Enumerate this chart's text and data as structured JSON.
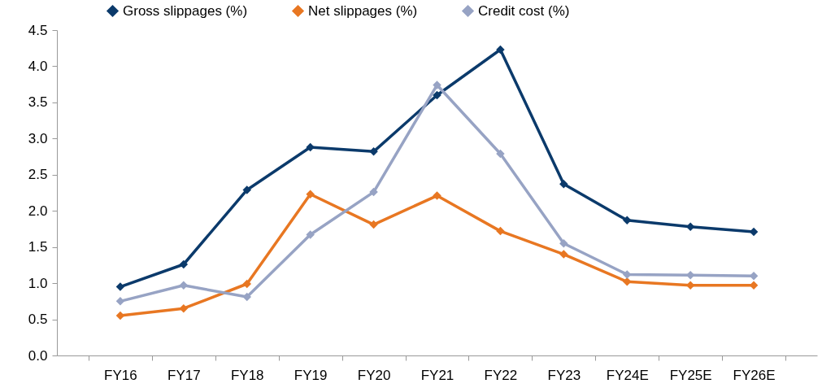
{
  "chart_data": {
    "type": "line",
    "categories": [
      "FY16",
      "FY17",
      "FY18",
      "FY19",
      "FY20",
      "FY21",
      "FY22",
      "FY23",
      "FY24E",
      "FY25E",
      "FY26E"
    ],
    "series": [
      {
        "name": "Gross slippages (%)",
        "color": "#0b3a6b",
        "values": [
          0.95,
          1.26,
          2.29,
          2.88,
          2.82,
          3.6,
          4.23,
          2.37,
          1.87,
          1.78,
          1.71
        ]
      },
      {
        "name": "Net slippages (%)",
        "color": "#e87722",
        "values": [
          0.55,
          0.65,
          0.99,
          2.23,
          1.81,
          2.21,
          1.72,
          1.4,
          1.02,
          0.97,
          0.97
        ]
      },
      {
        "name": "Credit cost (%)",
        "color": "#97a3c4",
        "values": [
          0.75,
          0.97,
          0.81,
          1.67,
          2.26,
          3.74,
          2.79,
          1.55,
          1.12,
          1.11,
          1.1
        ]
      }
    ],
    "ylim": [
      0,
      4.5
    ],
    "yticks": [
      {
        "value": 0,
        "label": "0.0"
      },
      {
        "value": 0.5,
        "label": "0.5"
      },
      {
        "value": 1,
        "label": "1.0"
      },
      {
        "value": 1.5,
        "label": "1.5"
      },
      {
        "value": 2,
        "label": "2.0"
      },
      {
        "value": 2.5,
        "label": "2.5"
      },
      {
        "value": 3,
        "label": "3.0"
      },
      {
        "value": 3.5,
        "label": "3.5"
      },
      {
        "value": 4,
        "label": "4.0"
      },
      {
        "value": 4.5,
        "label": "4.5"
      }
    ],
    "grid": false,
    "legend": "top",
    "marker": "diamond",
    "line_style": "solid"
  }
}
